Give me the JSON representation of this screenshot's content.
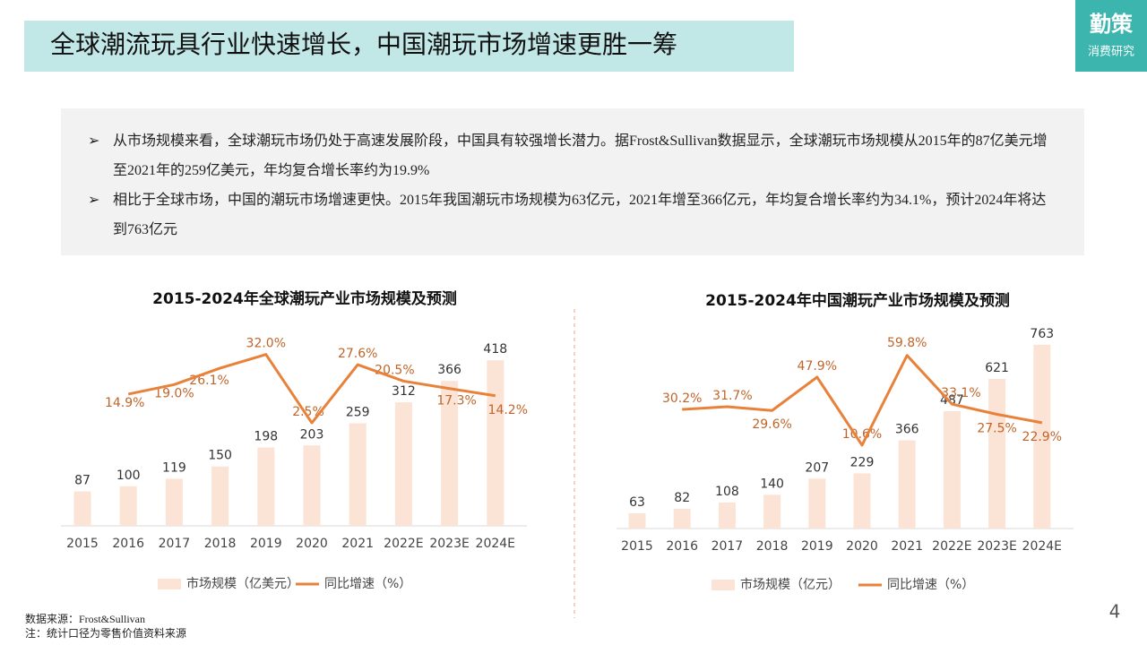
{
  "header": {
    "title": "全球潮流玩具行业快速增长，中国潮玩市场增速更胜一筹",
    "logo_top": "勤策",
    "logo_bottom": "消费研究"
  },
  "bullets": [
    "从市场规模来看，全球潮玩市场仍处于高速发展阶段，中国具有较强增长潜力。据Frost&Sullivan数据显示，全球潮玩市场规模从2015年的87亿美元增至2021年的259亿美元，年均复合增长率约为19.9%",
    "相比于全球市场，中国的潮玩市场增速更快。2015年我国潮玩市场规模为63亿元，2021年增至366亿元，年均复合增长率约为34.1%，预计2024年将达到763亿元"
  ],
  "chart_data": [
    {
      "type": "bar-line",
      "title": "2015-2024年全球潮玩产业市场规模及预测",
      "categories": [
        "2015",
        "2016",
        "2017",
        "2018",
        "2019",
        "2020",
        "2021",
        "2022E",
        "2023E",
        "2024E"
      ],
      "series": [
        {
          "name": "市场规模（亿美元）",
          "color": "#fbe3d5",
          "values": [
            87,
            100,
            119,
            150,
            198,
            203,
            259,
            312,
            366,
            418
          ]
        },
        {
          "name": "同比增速（%）",
          "color": "#e8823a",
          "axis": "y2",
          "values": [
            null,
            14.9,
            19.0,
            26.1,
            32.0,
            2.5,
            27.6,
            20.5,
            17.3,
            14.2
          ],
          "value_labels": [
            null,
            "14.9%",
            "19.0%",
            "26.1%",
            "32.0%",
            "2.5%",
            "27.6%",
            "20.5%",
            "17.3%",
            "14.2%"
          ]
        }
      ],
      "ylim": [
        0,
        500
      ],
      "y2lim": [
        0,
        40
      ],
      "legend": "bottom"
    },
    {
      "type": "bar-line",
      "title": "2015-2024年中国潮玩产业市场规模及预测",
      "categories": [
        "2015",
        "2016",
        "2017",
        "2018",
        "2019",
        "2020",
        "2021",
        "2022E",
        "2023E",
        "2024E"
      ],
      "series": [
        {
          "name": "市场规模（亿元）",
          "color": "#fbe3d5",
          "values": [
            63,
            82,
            108,
            140,
            207,
            229,
            366,
            487,
            621,
            763
          ]
        },
        {
          "name": "同比增速（%）",
          "color": "#e8823a",
          "axis": "y2",
          "values": [
            null,
            30.2,
            31.7,
            29.6,
            47.9,
            10.6,
            59.8,
            33.1,
            27.5,
            22.9
          ],
          "value_labels": [
            null,
            "30.2%",
            "31.7%",
            "29.6%",
            "47.9%",
            "10.6%",
            "59.8%",
            "33.1%",
            "27.5%",
            "22.9%"
          ]
        }
      ],
      "ylim": [
        0,
        900
      ],
      "y2lim": [
        0,
        70
      ],
      "legend": "bottom"
    }
  ],
  "notes": [
    "数据来源：Frost&Sullivan",
    "注：统计口径为零售价值资料来源"
  ],
  "page_number": "4"
}
